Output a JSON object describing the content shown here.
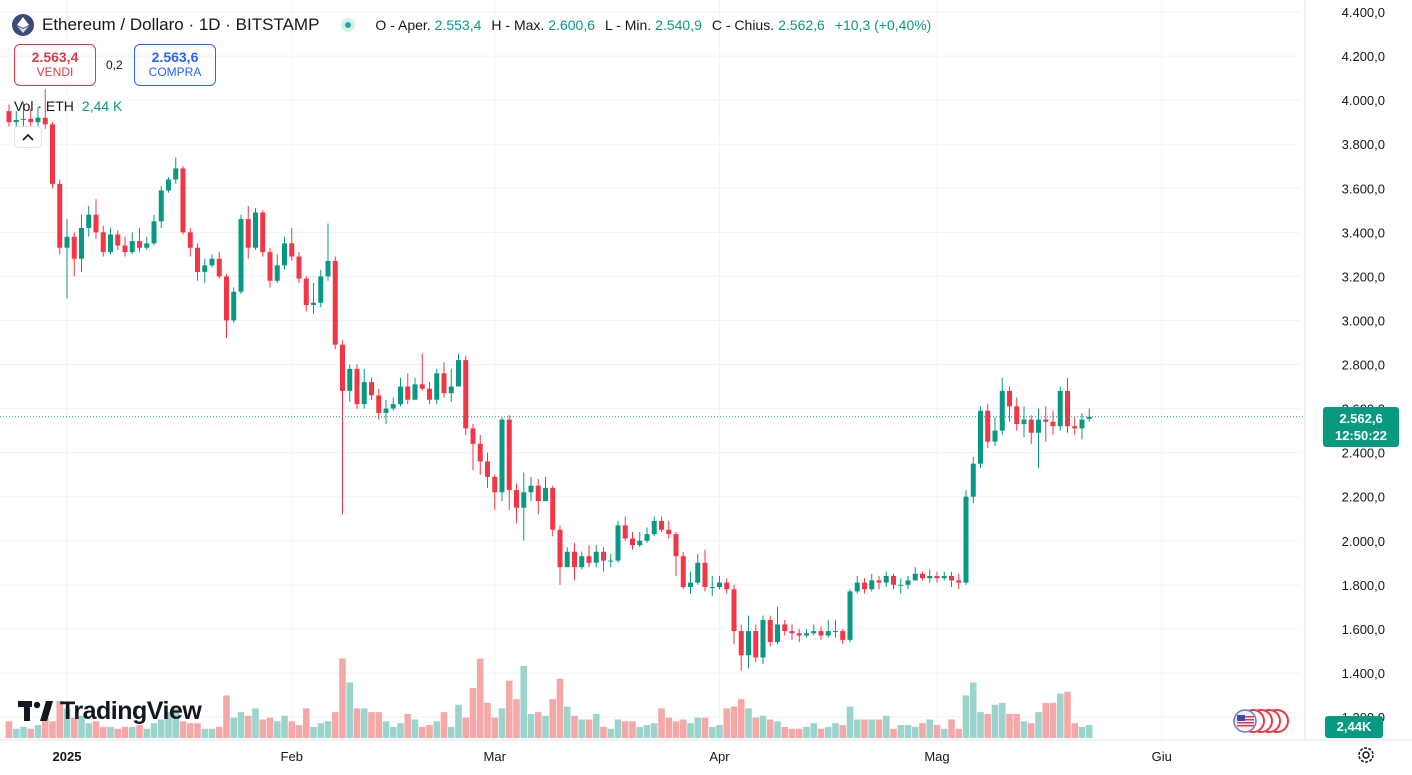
{
  "header": {
    "symbol_title": "Ethereum / Dollaro · 1D · BITSTAMP",
    "ohlc": {
      "open_label": "O - Aper.",
      "open": "2.553,4",
      "high_label": "H - Max.",
      "high": "2.600,6",
      "low_label": "L - Min.",
      "low": "2.540,9",
      "close_label": "C - Chius.",
      "close": "2.562,6",
      "change": "+10,3 (+0,40%)"
    }
  },
  "trade": {
    "sell_price": "2.563,4",
    "sell_label": "VENDI",
    "spread": "0,2",
    "buy_price": "2.563,6",
    "buy_label": "COMPRA"
  },
  "volume_legend": {
    "label": "Vol · ETH",
    "value": "2,44 K"
  },
  "brand": {
    "name": "TradingView"
  },
  "last_price_tag": {
    "price": "2.562,6",
    "countdown": "12:50:22"
  },
  "volume_tag": "2,44K",
  "colors": {
    "up": "#089981",
    "down": "#f23645",
    "up_volume": "#9bd4cc",
    "down_volume": "#f5a8a8",
    "grid": "#f0f3fa"
  },
  "icons": {
    "symbol": "ethereum-icon",
    "status": "market-open-dot-icon",
    "collapse": "chevron-up-icon",
    "settings": "gear-icon",
    "flags": "us-flag-icon"
  },
  "chart_data": {
    "type": "candlestick",
    "interval": "1D",
    "y_ticks": [
      "4.400,0",
      "4.200,0",
      "4.000,0",
      "3.800,0",
      "3.600,0",
      "3.400,0",
      "3.200,0",
      "3.000,0",
      "2.800,0",
      "2.600,0",
      "2.400,0",
      "2.200,0",
      "2.000,0",
      "1.800,0",
      "1.600,0",
      "1.400,0",
      "1.200,0"
    ],
    "ylim": [
      1200,
      4400
    ],
    "x_labels": [
      {
        "label": "2025",
        "bold": true,
        "bar": 8
      },
      {
        "label": "Feb",
        "bold": false,
        "bar": 39
      },
      {
        "label": "Mar",
        "bold": false,
        "bar": 67
      },
      {
        "label": "Apr",
        "bold": false,
        "bar": 98
      },
      {
        "label": "Mag",
        "bold": false,
        "bar": 128
      },
      {
        "label": "Giu",
        "bold": false,
        "bar": 159
      }
    ],
    "last_price": 2562.6,
    "bars": [
      [
        3950,
        3900,
        3980,
        3880,
        0.9
      ],
      [
        3900,
        3910,
        3950,
        3860,
        0.5
      ],
      [
        3910,
        3915,
        3990,
        3870,
        0.6
      ],
      [
        3915,
        3900,
        3960,
        3880,
        0.5
      ],
      [
        3900,
        3920,
        3970,
        3870,
        0.7
      ],
      [
        3920,
        3890,
        4050,
        3870,
        1.1
      ],
      [
        3890,
        3620,
        3900,
        3600,
        0.9
      ],
      [
        3620,
        3330,
        3640,
        3300,
        2.0
      ],
      [
        3330,
        3380,
        3460,
        3100,
        1.6
      ],
      [
        3380,
        3280,
        3400,
        3200,
        1.1
      ],
      [
        3280,
        3420,
        3480,
        3220,
        1.2
      ],
      [
        3420,
        3480,
        3520,
        3380,
        0.8
      ],
      [
        3480,
        3400,
        3550,
        3370,
        0.9
      ],
      [
        3400,
        3310,
        3430,
        3290,
        0.6
      ],
      [
        3310,
        3390,
        3420,
        3300,
        0.6
      ],
      [
        3390,
        3340,
        3410,
        3320,
        0.5
      ],
      [
        3340,
        3310,
        3380,
        3290,
        0.6
      ],
      [
        3310,
        3360,
        3400,
        3300,
        0.6
      ],
      [
        3360,
        3330,
        3420,
        3310,
        0.7
      ],
      [
        3330,
        3350,
        3380,
        3320,
        0.5
      ],
      [
        3350,
        3450,
        3480,
        3340,
        0.8
      ],
      [
        3450,
        3590,
        3610,
        3420,
        1.0
      ],
      [
        3590,
        3640,
        3650,
        3580,
        1.4
      ],
      [
        3640,
        3690,
        3740,
        3620,
        1.6
      ],
      [
        3690,
        3400,
        3700,
        3390,
        0.9
      ],
      [
        3400,
        3330,
        3420,
        3290,
        0.8
      ],
      [
        3330,
        3220,
        3350,
        3180,
        0.8
      ],
      [
        3220,
        3250,
        3280,
        3170,
        0.5
      ],
      [
        3250,
        3280,
        3300,
        3240,
        0.5
      ],
      [
        3280,
        3200,
        3310,
        3190,
        0.6
      ],
      [
        3200,
        3000,
        3210,
        2920,
        2.3
      ],
      [
        3000,
        3130,
        3150,
        2990,
        1.1
      ],
      [
        3130,
        3460,
        3480,
        3120,
        1.4
      ],
      [
        3460,
        3330,
        3520,
        3280,
        1.2
      ],
      [
        3330,
        3490,
        3510,
        3320,
        1.6
      ],
      [
        3490,
        3310,
        3500,
        3290,
        1.0
      ],
      [
        3310,
        3180,
        3330,
        3150,
        1.1
      ],
      [
        3180,
        3250,
        3300,
        3170,
        0.9
      ],
      [
        3250,
        3350,
        3380,
        3230,
        1.2
      ],
      [
        3350,
        3290,
        3420,
        3270,
        0.9
      ],
      [
        3290,
        3190,
        3310,
        3170,
        0.7
      ],
      [
        3190,
        3070,
        3200,
        3040,
        1.6
      ],
      [
        3070,
        3080,
        3170,
        3030,
        0.6
      ],
      [
        3080,
        3200,
        3230,
        3060,
        0.8
      ],
      [
        3200,
        3270,
        3440,
        3180,
        0.9
      ],
      [
        3270,
        2890,
        3290,
        2870,
        1.4
      ],
      [
        2890,
        2680,
        2910,
        2120,
        4.3
      ],
      [
        2680,
        2780,
        2800,
        2630,
        3.0
      ],
      [
        2780,
        2620,
        2800,
        2600,
        1.6
      ],
      [
        2620,
        2720,
        2780,
        2600,
        1.6
      ],
      [
        2720,
        2660,
        2740,
        2640,
        1.4
      ],
      [
        2660,
        2580,
        2690,
        2550,
        1.4
      ],
      [
        2580,
        2600,
        2640,
        2530,
        0.9
      ],
      [
        2600,
        2620,
        2650,
        2590,
        0.6
      ],
      [
        2620,
        2700,
        2740,
        2610,
        0.8
      ],
      [
        2700,
        2640,
        2760,
        2620,
        1.3
      ],
      [
        2640,
        2710,
        2740,
        2640,
        1.0
      ],
      [
        2710,
        2690,
        2850,
        2680,
        0.6
      ],
      [
        2690,
        2640,
        2720,
        2620,
        0.7
      ],
      [
        2640,
        2760,
        2780,
        2620,
        0.9
      ],
      [
        2760,
        2670,
        2810,
        2650,
        1.4
      ],
      [
        2670,
        2700,
        2780,
        2630,
        0.6
      ],
      [
        2700,
        2820,
        2850,
        2700,
        1.8
      ],
      [
        2820,
        2510,
        2840,
        2480,
        1.1
      ],
      [
        2510,
        2440,
        2530,
        2320,
        2.7
      ],
      [
        2440,
        2360,
        2480,
        2300,
        4.3
      ],
      [
        2360,
        2290,
        2400,
        2240,
        1.9
      ],
      [
        2290,
        2220,
        2300,
        2140,
        1.1
      ],
      [
        2220,
        2550,
        2560,
        2180,
        1.6
      ],
      [
        2550,
        2230,
        2570,
        2140,
        3.1
      ],
      [
        2230,
        2150,
        2260,
        2080,
        2.1
      ],
      [
        2150,
        2220,
        2310,
        2000,
        3.9
      ],
      [
        2220,
        2250,
        2290,
        2180,
        1.3
      ],
      [
        2250,
        2180,
        2280,
        2120,
        1.4
      ],
      [
        2180,
        2240,
        2290,
        2180,
        1.2
      ],
      [
        2240,
        2050,
        2250,
        2020,
        2.1
      ],
      [
        2050,
        1880,
        2070,
        1800,
        3.2
      ],
      [
        1880,
        1950,
        1970,
        1880,
        1.7
      ],
      [
        1950,
        1880,
        1990,
        1820,
        1.2
      ],
      [
        1880,
        1930,
        1950,
        1870,
        1.0
      ],
      [
        1930,
        1900,
        1980,
        1880,
        1.0
      ],
      [
        1900,
        1950,
        1980,
        1880,
        1.3
      ],
      [
        1950,
        1910,
        1970,
        1860,
        0.6
      ],
      [
        1910,
        1910,
        1940,
        1880,
        0.5
      ],
      [
        1910,
        2070,
        2090,
        1900,
        1.0
      ],
      [
        2070,
        2010,
        2110,
        2000,
        0.9
      ],
      [
        2010,
        1980,
        2040,
        1960,
        0.9
      ],
      [
        1980,
        2000,
        2040,
        1970,
        0.6
      ],
      [
        2000,
        2030,
        2060,
        1990,
        0.7
      ],
      [
        2030,
        2090,
        2110,
        2020,
        0.8
      ],
      [
        2090,
        2050,
        2110,
        2040,
        1.6
      ],
      [
        2050,
        2030,
        2090,
        2010,
        1.1
      ],
      [
        2030,
        1930,
        2040,
        1840,
        0.9
      ],
      [
        1930,
        1790,
        1950,
        1780,
        1.0
      ],
      [
        1790,
        1810,
        1860,
        1760,
        0.8
      ],
      [
        1810,
        1900,
        1940,
        1800,
        1.1
      ],
      [
        1900,
        1790,
        1960,
        1770,
        1.1
      ],
      [
        1790,
        1790,
        1840,
        1750,
        0.6
      ],
      [
        1790,
        1810,
        1840,
        1780,
        0.7
      ],
      [
        1810,
        1780,
        1830,
        1760,
        1.6
      ],
      [
        1780,
        1590,
        1800,
        1530,
        1.7
      ],
      [
        1590,
        1480,
        1620,
        1410,
        2.1
      ],
      [
        1480,
        1590,
        1660,
        1420,
        1.6
      ],
      [
        1590,
        1470,
        1620,
        1450,
        1.1
      ],
      [
        1470,
        1640,
        1660,
        1440,
        1.2
      ],
      [
        1640,
        1540,
        1660,
        1520,
        1.0
      ],
      [
        1540,
        1620,
        1700,
        1530,
        0.9
      ],
      [
        1620,
        1590,
        1640,
        1570,
        0.6
      ],
      [
        1590,
        1580,
        1620,
        1550,
        0.5
      ],
      [
        1580,
        1570,
        1600,
        1540,
        0.5
      ],
      [
        1570,
        1580,
        1600,
        1560,
        0.6
      ],
      [
        1580,
        1590,
        1620,
        1570,
        0.8
      ],
      [
        1590,
        1570,
        1610,
        1550,
        0.5
      ],
      [
        1570,
        1590,
        1640,
        1560,
        0.6
      ],
      [
        1590,
        1590,
        1640,
        1560,
        0.8
      ],
      [
        1590,
        1550,
        1600,
        1530,
        0.7
      ],
      [
        1550,
        1770,
        1780,
        1540,
        1.7
      ],
      [
        1770,
        1810,
        1840,
        1760,
        1.0
      ],
      [
        1810,
        1780,
        1830,
        1760,
        1.0
      ],
      [
        1780,
        1820,
        1850,
        1770,
        1.0
      ],
      [
        1820,
        1810,
        1840,
        1780,
        1.0
      ],
      [
        1810,
        1840,
        1860,
        1790,
        1.2
      ],
      [
        1840,
        1800,
        1850,
        1780,
        0.5
      ],
      [
        1800,
        1800,
        1830,
        1760,
        0.7
      ],
      [
        1800,
        1820,
        1840,
        1780,
        0.7
      ],
      [
        1820,
        1850,
        1880,
        1820,
        0.6
      ],
      [
        1850,
        1830,
        1860,
        1820,
        0.8
      ],
      [
        1830,
        1840,
        1870,
        1810,
        1.0
      ],
      [
        1840,
        1830,
        1860,
        1810,
        0.7
      ],
      [
        1830,
        1840,
        1860,
        1820,
        0.5
      ],
      [
        1840,
        1820,
        1860,
        1790,
        1.0
      ],
      [
        1820,
        1810,
        1850,
        1780,
        0.5
      ],
      [
        1810,
        2200,
        2230,
        1800,
        2.3
      ],
      [
        2200,
        2350,
        2380,
        2170,
        3.0
      ],
      [
        2350,
        2590,
        2610,
        2330,
        1.4
      ],
      [
        2590,
        2450,
        2620,
        2420,
        1.3
      ],
      [
        2450,
        2500,
        2560,
        2430,
        1.8
      ],
      [
        2500,
        2680,
        2740,
        2480,
        1.9
      ],
      [
        2680,
        2610,
        2700,
        2540,
        1.3
      ],
      [
        2610,
        2530,
        2650,
        2500,
        1.3
      ],
      [
        2530,
        2550,
        2610,
        2470,
        0.9
      ],
      [
        2550,
        2490,
        2570,
        2440,
        0.8
      ],
      [
        2490,
        2550,
        2600,
        2330,
        1.4
      ],
      [
        2550,
        2540,
        2610,
        2450,
        1.9
      ],
      [
        2540,
        2520,
        2590,
        2480,
        1.9
      ],
      [
        2520,
        2680,
        2700,
        2500,
        2.4
      ],
      [
        2680,
        2520,
        2740,
        2490,
        2.5
      ],
      [
        2520,
        2510,
        2560,
        2480,
        0.8
      ],
      [
        2510,
        2550,
        2580,
        2460,
        0.6
      ],
      [
        2553.4,
        2562.6,
        2600.6,
        2540.9,
        0.7
      ]
    ],
    "volume_ylim": [
      0,
      10
    ]
  }
}
